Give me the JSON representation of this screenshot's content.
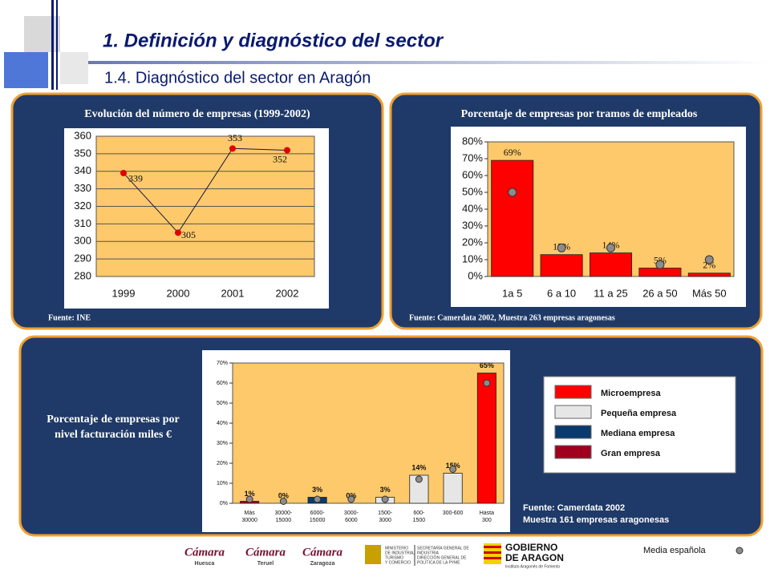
{
  "header": {
    "title": "1.  Definición y diagnóstico del sector",
    "subtitle": "1.4. Diagnóstico del sector en Aragón"
  },
  "chart_data": [
    {
      "type": "line",
      "title": "Evolución del número de empresas  (1999-2002)",
      "categories": [
        "1999",
        "2000",
        "2001",
        "2002"
      ],
      "values": [
        339,
        305,
        353,
        352
      ],
      "color": "#e00000",
      "line_color": "#1a1a3a",
      "ylim": [
        280,
        360
      ],
      "yticks": [
        280,
        290,
        300,
        310,
        320,
        330,
        340,
        350,
        360
      ],
      "grid": true,
      "source": "Fuente: INE"
    },
    {
      "type": "bar",
      "title": "Porcentaje de empresas por tramos de empleados",
      "categories": [
        "1a 5",
        "6 a 10",
        "11 a 25",
        "26 a 50",
        "Más 50"
      ],
      "series": [
        {
          "color": "#ff0000",
          "values": [
            69,
            13,
            14,
            5,
            2
          ],
          "value_labels": [
            "69%",
            "13%",
            "14%",
            "5%",
            "2%"
          ]
        },
        {
          "color": "#8c8c8c",
          "values": [
            50,
            17,
            17,
            7,
            10
          ]
        }
      ],
      "ylim": [
        0,
        80
      ],
      "yticks": [
        {
          "value": 0,
          "label": "0%"
        },
        {
          "value": 10,
          "label": "10%"
        },
        {
          "value": 20,
          "label": "20%"
        },
        {
          "value": 30,
          "label": "30%"
        },
        {
          "value": 40,
          "label": "40%"
        },
        {
          "value": 50,
          "label": "50%"
        },
        {
          "value": 60,
          "label": "60%"
        },
        {
          "value": 70,
          "label": "70%"
        },
        {
          "value": 80,
          "label": "80%"
        }
      ],
      "source": "Fuente: Camerdata 2002, Muestra 263 empresas aragonesas"
    },
    {
      "type": "bar",
      "title": [
        "Porcentaje de empresas por",
        "nivel facturación miles €"
      ],
      "categories": [
        [
          "Más",
          "30000"
        ],
        [
          "30000-",
          "15000"
        ],
        [
          "6000-",
          "15000"
        ],
        [
          "3000-",
          "6000"
        ],
        [
          "1500-",
          "3000"
        ],
        [
          "600-",
          "1500"
        ],
        [
          "300-600"
        ],
        [
          "Hasta",
          "300"
        ]
      ],
      "series": [
        {
          "colors": [
            "#a0001e",
            "#e6e6e6",
            "#0a3a6e",
            "#e6e6e6",
            "#e6e6e6",
            "#e6e6e6",
            "#e6e6e6",
            "#ff0000"
          ],
          "values": [
            1,
            0,
            3,
            0,
            3,
            14,
            15,
            65
          ],
          "value_labels": [
            "1%",
            "0%",
            "3%",
            "0%",
            "3%",
            "14%",
            "15%",
            "65%"
          ]
        },
        {
          "name": "Media española",
          "color": "#8c8c8c",
          "values": [
            2,
            1,
            2,
            2,
            2,
            12,
            17,
            60
          ]
        }
      ],
      "legend": [
        {
          "name": "Microempresa",
          "color": "#ff0000"
        },
        {
          "name": "Pequeña empresa",
          "color": "#e6e6e6"
        },
        {
          "name": "Mediana empresa",
          "color": "#0a3a6e"
        },
        {
          "name": "Gran empresa",
          "color": "#a0001e"
        }
      ],
      "ylim": [
        0,
        70
      ],
      "yticks": [
        {
          "value": 0,
          "label": "0%"
        },
        {
          "value": 10,
          "label": "10%"
        },
        {
          "value": 20,
          "label": "20%"
        },
        {
          "value": 30,
          "label": "30%"
        },
        {
          "value": 40,
          "label": "40%"
        },
        {
          "value": 50,
          "label": "50%"
        },
        {
          "value": 60,
          "label": "60%"
        },
        {
          "value": 70,
          "label": "70%"
        }
      ],
      "source": [
        "Fuente: Camerdata 2002",
        "Muestra 161 empresas aragonesas"
      ]
    }
  ],
  "footer": {
    "logos": [
      [
        "Cámara",
        "Huesca"
      ],
      [
        "Cámara",
        "Teruel"
      ],
      [
        "Cámara",
        "Zaragoza"
      ]
    ],
    "ministry": [
      "MINISTERIO",
      "DE INDUSTRIA,",
      "TURISMO",
      "Y COMERCIO"
    ],
    "secretaria": [
      "SECRETARÍA GENERAL DE",
      "INDUSTRIA",
      "DIRECCIÓN GENERAL DE",
      "POLÍTICA DE LA PYME"
    ],
    "gobierno": [
      "GOBIERNO",
      "DE ARAGON",
      "Instituto Aragonés de Fomento"
    ]
  }
}
